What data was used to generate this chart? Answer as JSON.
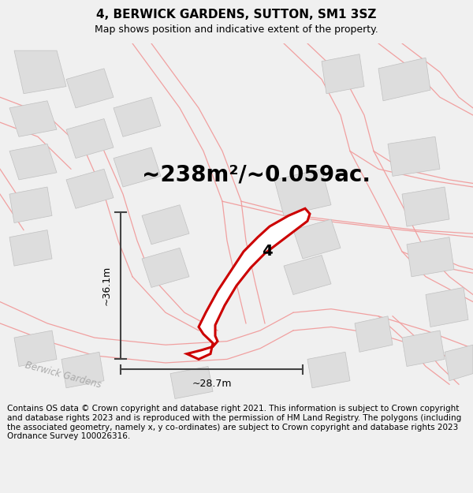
{
  "title": "4, BERWICK GARDENS, SUTTON, SM1 3SZ",
  "subtitle": "Map shows position and indicative extent of the property.",
  "area_text": "~238m²/~0.059ac.",
  "label_number": "4",
  "dim_vertical": "~36.1m",
  "dim_horizontal": "~28.7m",
  "footer_text": "Contains OS data © Crown copyright and database right 2021. This information is subject to Crown copyright and database rights 2023 and is reproduced with the permission of HM Land Registry. The polygons (including the associated geometry, namely x, y co-ordinates) are subject to Crown copyright and database rights 2023 Ordnance Survey 100026316.",
  "bg_color": "#f0f0f0",
  "map_bg": "#f8f8f8",
  "property_color": "#cc0000",
  "road_color": "#f0a0a0",
  "building_color": "#dddddd",
  "building_stroke": "#c0c0c0",
  "dim_color": "#444444",
  "road_label_color": "#aaaaaa",
  "title_fontsize": 11,
  "subtitle_fontsize": 9,
  "area_fontsize": 20,
  "footer_fontsize": 7.5
}
